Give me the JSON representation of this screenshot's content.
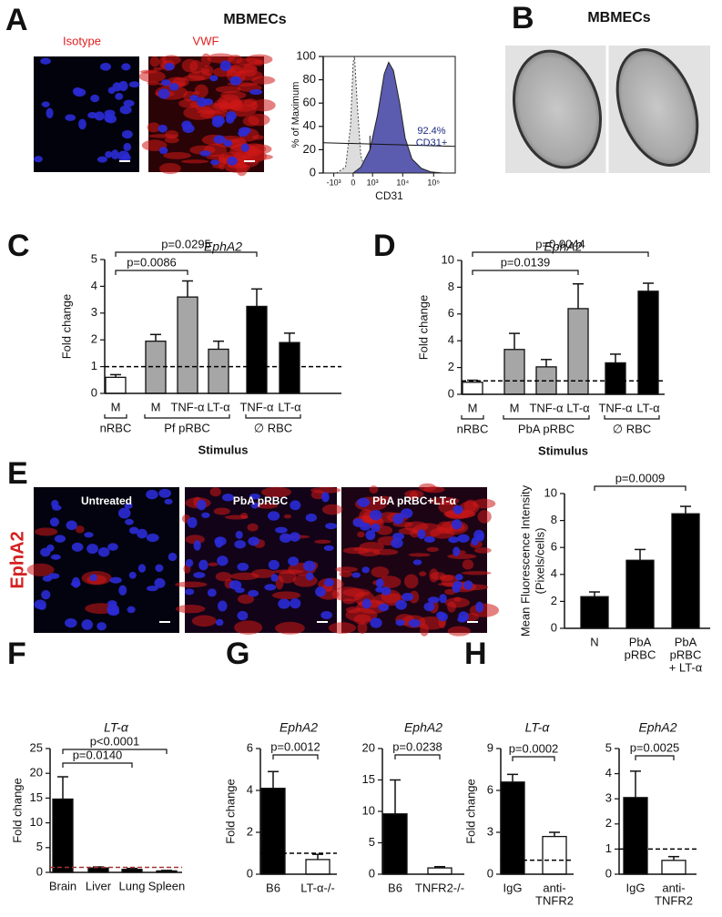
{
  "panel_labels": [
    "A",
    "B",
    "C",
    "D",
    "E",
    "F",
    "G",
    "H"
  ],
  "panel_a": {
    "title": "MBMECs",
    "images": [
      "Isotype",
      "VWF"
    ]
  },
  "panel_b": {
    "title": "MBMECs"
  },
  "panel_e": {
    "side_label": "EphA2",
    "images": [
      "Untreated",
      "PbA pRBC",
      "PbA pRBC+LT-α"
    ]
  },
  "chart_data": [
    {
      "type": "flow",
      "ylabel": "% of Maximum",
      "xlabel": "CD31",
      "annotation": [
        "92.4%",
        "CD31+"
      ],
      "xlim": [
        -2300,
        500000
      ],
      "ylim": [
        0,
        100
      ],
      "xticks": [
        {
          "value": -1000,
          "label": "-10³"
        },
        0,
        {
          "value": 1000,
          "label": "10³"
        },
        {
          "value": 10000,
          "label": "10⁴"
        },
        {
          "value": 100000,
          "label": "10⁵"
        }
      ],
      "yticks": [
        0,
        20,
        40,
        60,
        80,
        100
      ],
      "series": [
        {
          "name": "Isotype",
          "color": "#bbbbbb",
          "x": [
            -800,
            -300,
            -100,
            0,
            50,
            150,
            300,
            500,
            1000
          ],
          "values": [
            0,
            5,
            40,
            95,
            100,
            60,
            15,
            3,
            0
          ]
        },
        {
          "name": "CD31",
          "color": "#5b5bb0",
          "x": [
            0,
            300,
            800,
            1500,
            2500,
            3500,
            5000,
            8000,
            12000,
            20000,
            40000,
            80000,
            200000
          ],
          "values": [
            0,
            5,
            20,
            50,
            85,
            95,
            88,
            60,
            30,
            12,
            4,
            1,
            0
          ]
        }
      ]
    },
    {
      "type": "bar",
      "title": "EphA2",
      "ylabel": "Fold change",
      "xlabel": "Stimulus",
      "categories": [
        "M",
        "M",
        "TNF-α",
        "LT-α",
        "TNF-α",
        "LT-α"
      ],
      "values": [
        0.6,
        1.95,
        3.6,
        1.65,
        3.25,
        1.9
      ],
      "errors": [
        0.1,
        0.25,
        0.6,
        0.3,
        0.65,
        0.35
      ],
      "colors": [
        "#ffffff",
        "#a6a6a6",
        "#a6a6a6",
        "#a6a6a6",
        "#000000",
        "#000000"
      ],
      "ylim": [
        0,
        5
      ],
      "yticks": [
        0,
        1,
        2,
        3,
        4,
        5
      ],
      "ref_line": 1,
      "ref_color": "#000000",
      "comparisons": [
        {
          "from": 0,
          "to": 2,
          "label": "p=0.0086"
        },
        {
          "from": 0,
          "to": 4,
          "label": "p=0.0295"
        }
      ],
      "groups": [
        {
          "label": "nRBC",
          "from": 0,
          "to": 0
        },
        {
          "label": "Pf pRBC",
          "from": 1,
          "to": 3
        },
        {
          "label": "∅ RBC",
          "from": 4,
          "to": 5
        }
      ]
    },
    {
      "type": "bar",
      "title": "EphA2",
      "ylabel": "Fold change",
      "xlabel": "Stimulus",
      "categories": [
        "M",
        "M",
        "TNF-α",
        "LT-α",
        "TNF-α",
        "LT-α"
      ],
      "values": [
        0.9,
        3.35,
        2.05,
        6.4,
        2.35,
        7.7
      ],
      "errors": [
        0.15,
        1.2,
        0.55,
        1.85,
        0.65,
        0.6
      ],
      "colors": [
        "#ffffff",
        "#a6a6a6",
        "#a6a6a6",
        "#a6a6a6",
        "#000000",
        "#000000"
      ],
      "ylim": [
        0,
        10
      ],
      "yticks": [
        0,
        2,
        4,
        6,
        8,
        10
      ],
      "ref_line": 1,
      "ref_color": "#000000",
      "comparisons": [
        {
          "from": 0,
          "to": 3,
          "label": "p=0.0139"
        },
        {
          "from": 0,
          "to": 5,
          "label": "p=0.0044"
        }
      ],
      "groups": [
        {
          "label": "nRBC",
          "from": 0,
          "to": 0
        },
        {
          "label": "PbA pRBC",
          "from": 1,
          "to": 3
        },
        {
          "label": "∅ RBC",
          "from": 4,
          "to": 5
        }
      ]
    },
    {
      "type": "bar",
      "ylabel": [
        "Mean Fluorescence Intensity",
        "(Pixels/cells)"
      ],
      "categories": [
        [
          "N"
        ],
        [
          "PbA",
          "pRBC"
        ],
        [
          "PbA",
          "pRBC",
          "+ LT-α"
        ]
      ],
      "values": [
        2.35,
        5.05,
        8.5
      ],
      "errors": [
        0.35,
        0.8,
        0.55
      ],
      "colors": [
        "#000000",
        "#000000",
        "#000000"
      ],
      "ylim": [
        0,
        10
      ],
      "yticks": [
        0,
        2,
        4,
        6,
        8,
        10
      ],
      "comparisons": [
        {
          "from": 0,
          "to": 2,
          "label": "p=0.0009"
        }
      ]
    },
    {
      "type": "bar",
      "title": "LT-α",
      "ylabel": "Fold change",
      "categories": [
        "Brain",
        "Liver",
        "Lung",
        "Spleen"
      ],
      "values": [
        14.8,
        0.9,
        0.6,
        0.3
      ],
      "errors": [
        4.5,
        0.2,
        0.2,
        0.1
      ],
      "colors": [
        "#000000",
        "#000000",
        "#000000",
        "#000000"
      ],
      "ylim": [
        0,
        25
      ],
      "yticks": [
        0,
        5,
        10,
        15,
        20,
        25
      ],
      "ref_line": 1,
      "ref_color": "#a83232",
      "comparisons": [
        {
          "from": 0,
          "to": 2,
          "label": "p=0.0140"
        },
        {
          "from": 0,
          "to": 3,
          "label": "p<0.0001"
        }
      ]
    },
    {
      "type": "bar",
      "title": "EphA2",
      "ylabel": "Fold change",
      "categories": [
        "B6",
        "LT-α-/-"
      ],
      "values": [
        4.1,
        0.7
      ],
      "errors": [
        0.8,
        0.25
      ],
      "colors": [
        "#000000",
        "#ffffff"
      ],
      "ylim": [
        0,
        6
      ],
      "yticks": [
        0,
        2,
        4,
        6
      ],
      "ref_line": 1,
      "ref_color": "#000000",
      "comparisons": [
        {
          "from": 0,
          "to": 1,
          "label": "p=0.0012"
        }
      ]
    },
    {
      "type": "bar",
      "title": "EphA2",
      "categories": [
        "B6",
        "TNFR2-/-"
      ],
      "values": [
        9.6,
        1.0
      ],
      "errors": [
        5.4,
        0.2
      ],
      "colors": [
        "#000000",
        "#ffffff"
      ],
      "ylim": [
        0,
        20
      ],
      "yticks": [
        0,
        5,
        10,
        15,
        20
      ],
      "comparisons": [
        {
          "from": 0,
          "to": 1,
          "label": "p=0.0238"
        }
      ]
    },
    {
      "type": "bar",
      "title": "LT-α",
      "ylabel": "Fold change",
      "categories": [
        [
          "IgG"
        ],
        [
          "anti-",
          "TNFR2"
        ]
      ],
      "values": [
        6.6,
        2.7
      ],
      "errors": [
        0.55,
        0.3
      ],
      "colors": [
        "#000000",
        "#ffffff"
      ],
      "ylim": [
        0,
        9
      ],
      "yticks": [
        0,
        3,
        6,
        9
      ],
      "ref_line": 1,
      "ref_color": "#000000",
      "comparisons": [
        {
          "from": 0,
          "to": 1,
          "label": "p=0.0002"
        }
      ]
    },
    {
      "type": "bar",
      "title": "EphA2",
      "categories": [
        [
          "IgG"
        ],
        [
          "anti-",
          "TNFR2"
        ]
      ],
      "values": [
        3.05,
        0.55
      ],
      "errors": [
        1.05,
        0.15
      ],
      "colors": [
        "#000000",
        "#ffffff"
      ],
      "ylim": [
        0,
        5
      ],
      "yticks": [
        0,
        1,
        2,
        3,
        4,
        5
      ],
      "ref_line": 1,
      "ref_color": "#000000",
      "comparisons": [
        {
          "from": 0,
          "to": 1,
          "label": "p=0.0025"
        }
      ]
    }
  ]
}
